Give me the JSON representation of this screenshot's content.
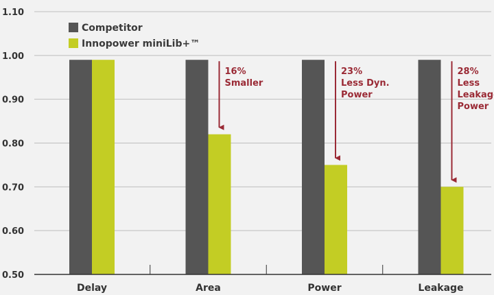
{
  "chart_data": {
    "type": "bar",
    "categories": [
      "Delay",
      "Area",
      "Power",
      "Leakage"
    ],
    "series": [
      {
        "name": "Competitor",
        "values": [
          0.99,
          0.99,
          0.99,
          0.99
        ],
        "color": "#555555"
      },
      {
        "name": "Innopower miniLib+™",
        "values": [
          0.99,
          0.82,
          0.75,
          0.7
        ],
        "color": "#c3cd24"
      }
    ],
    "ylim": [
      0.5,
      1.1
    ],
    "yticks": [
      "0.50",
      "0.60",
      "0.70",
      "0.80",
      "0.90",
      "1.00",
      "1.10"
    ],
    "grid": true,
    "legend": "top-left",
    "annotations": [
      {
        "category": "Area",
        "lines": [
          "16%",
          "Smaller"
        ]
      },
      {
        "category": "Power",
        "lines": [
          "23%",
          "Less Dyn.",
          "Power"
        ]
      },
      {
        "category": "Leakage",
        "lines": [
          "28%",
          "Less",
          "Leakage",
          "Power"
        ]
      }
    ],
    "annotation_color": "#9a2a35",
    "title": "",
    "xlabel": "",
    "ylabel": ""
  }
}
